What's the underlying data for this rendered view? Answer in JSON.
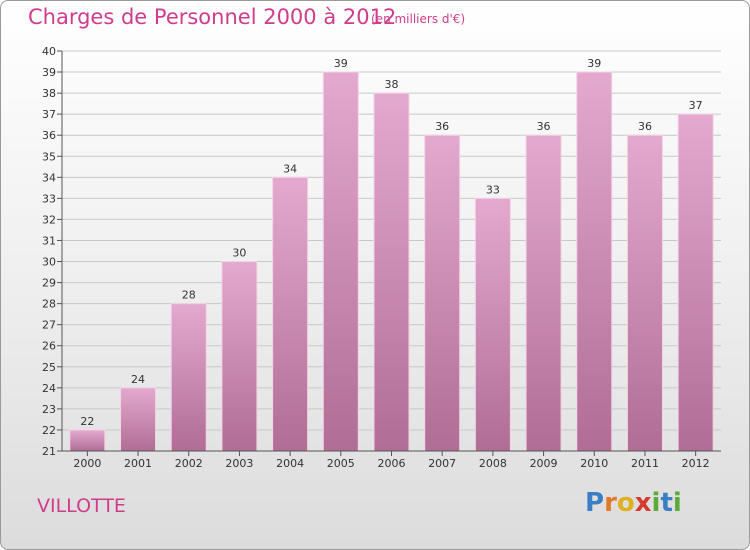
{
  "header": {
    "title": "Charges de Personnel 2000 à 2012",
    "subtitle": "(en milliers d'€)"
  },
  "footer": {
    "commune": "VILLOTTE",
    "logo": {
      "letters": [
        "P",
        "r",
        "o",
        "x",
        "i",
        "t",
        "i"
      ],
      "colors": [
        "#3a7fc4",
        "#e07a2a",
        "#e0b020",
        "#d33b2c",
        "#5aab3a",
        "#3a7fc4",
        "#5aab3a"
      ]
    }
  },
  "colors": {
    "bar_top": "#e4a9cf",
    "bar_bottom": "#b06d95",
    "grid": "#c8c8c8",
    "axis": "#555555",
    "accent": "#d03c8c"
  },
  "chart_data": {
    "type": "bar",
    "categories": [
      "2000",
      "2001",
      "2002",
      "2003",
      "2004",
      "2005",
      "2006",
      "2007",
      "2008",
      "2009",
      "2010",
      "2011",
      "2012"
    ],
    "values": [
      22,
      24,
      28,
      30,
      34,
      39,
      38,
      36,
      33,
      36,
      39,
      36,
      37
    ],
    "ylim": [
      21,
      40
    ],
    "yticks": [
      21,
      22,
      23,
      24,
      25,
      26,
      27,
      28,
      29,
      30,
      31,
      32,
      33,
      34,
      35,
      36,
      37,
      38,
      39,
      40
    ],
    "grid": true,
    "data_labels": true
  }
}
